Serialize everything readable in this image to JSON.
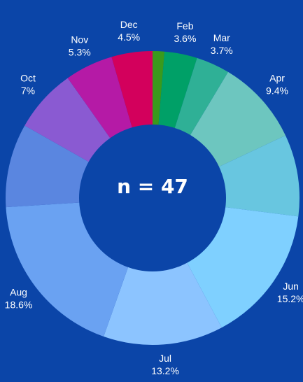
{
  "chart_data": {
    "type": "donut",
    "center_label": "n = 47",
    "categories": [
      null,
      "Feb",
      "Mar",
      "Apr",
      null,
      "Jun",
      "Jul",
      "Aug",
      null,
      "Oct",
      "Nov",
      "Dec"
    ],
    "values": [
      1.3,
      3.6,
      3.7,
      9.4,
      9.0,
      15.2,
      13.2,
      18.6,
      9.2,
      7,
      5.3,
      4.5
    ],
    "value_labels": [
      null,
      "3.6%",
      "3.7%",
      "9.4%",
      null,
      "15.2%",
      "13.2%",
      "18.6%",
      null,
      "7%",
      "5.3%",
      "4.5%"
    ],
    "colors": [
      "#3a9a1c",
      "#00a067",
      "#2fb096",
      "#6dc6bf",
      "#68c6e0",
      "#7fd0ff",
      "#8cc4ff",
      "#6aa2f2",
      "#5a86e0",
      "#8a5ad2",
      "#b51aa6",
      "#d3005c"
    ]
  }
}
